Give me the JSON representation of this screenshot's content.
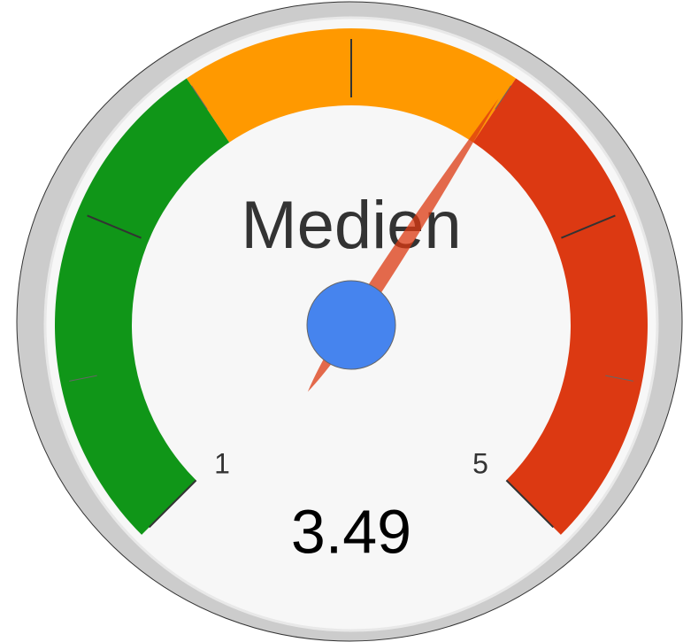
{
  "chart_data": {
    "type": "gauge",
    "title": "Medien",
    "value": 3.49,
    "ylim": [
      1,
      5
    ],
    "yticks": [
      1,
      5
    ],
    "major_ticks": [
      2,
      3,
      4
    ],
    "minor_ticks": [
      1.5,
      2.5,
      3.5,
      4.5
    ],
    "bands": [
      {
        "from": 1,
        "to": 2.5,
        "color": "#109618"
      },
      {
        "from": 2.5,
        "to": 3.5,
        "color": "#FF9900"
      },
      {
        "from": 3.5,
        "to": 5,
        "color": "#DC3912"
      }
    ],
    "needle_color": "#DC3912",
    "pivot_color": "#4684EE"
  }
}
